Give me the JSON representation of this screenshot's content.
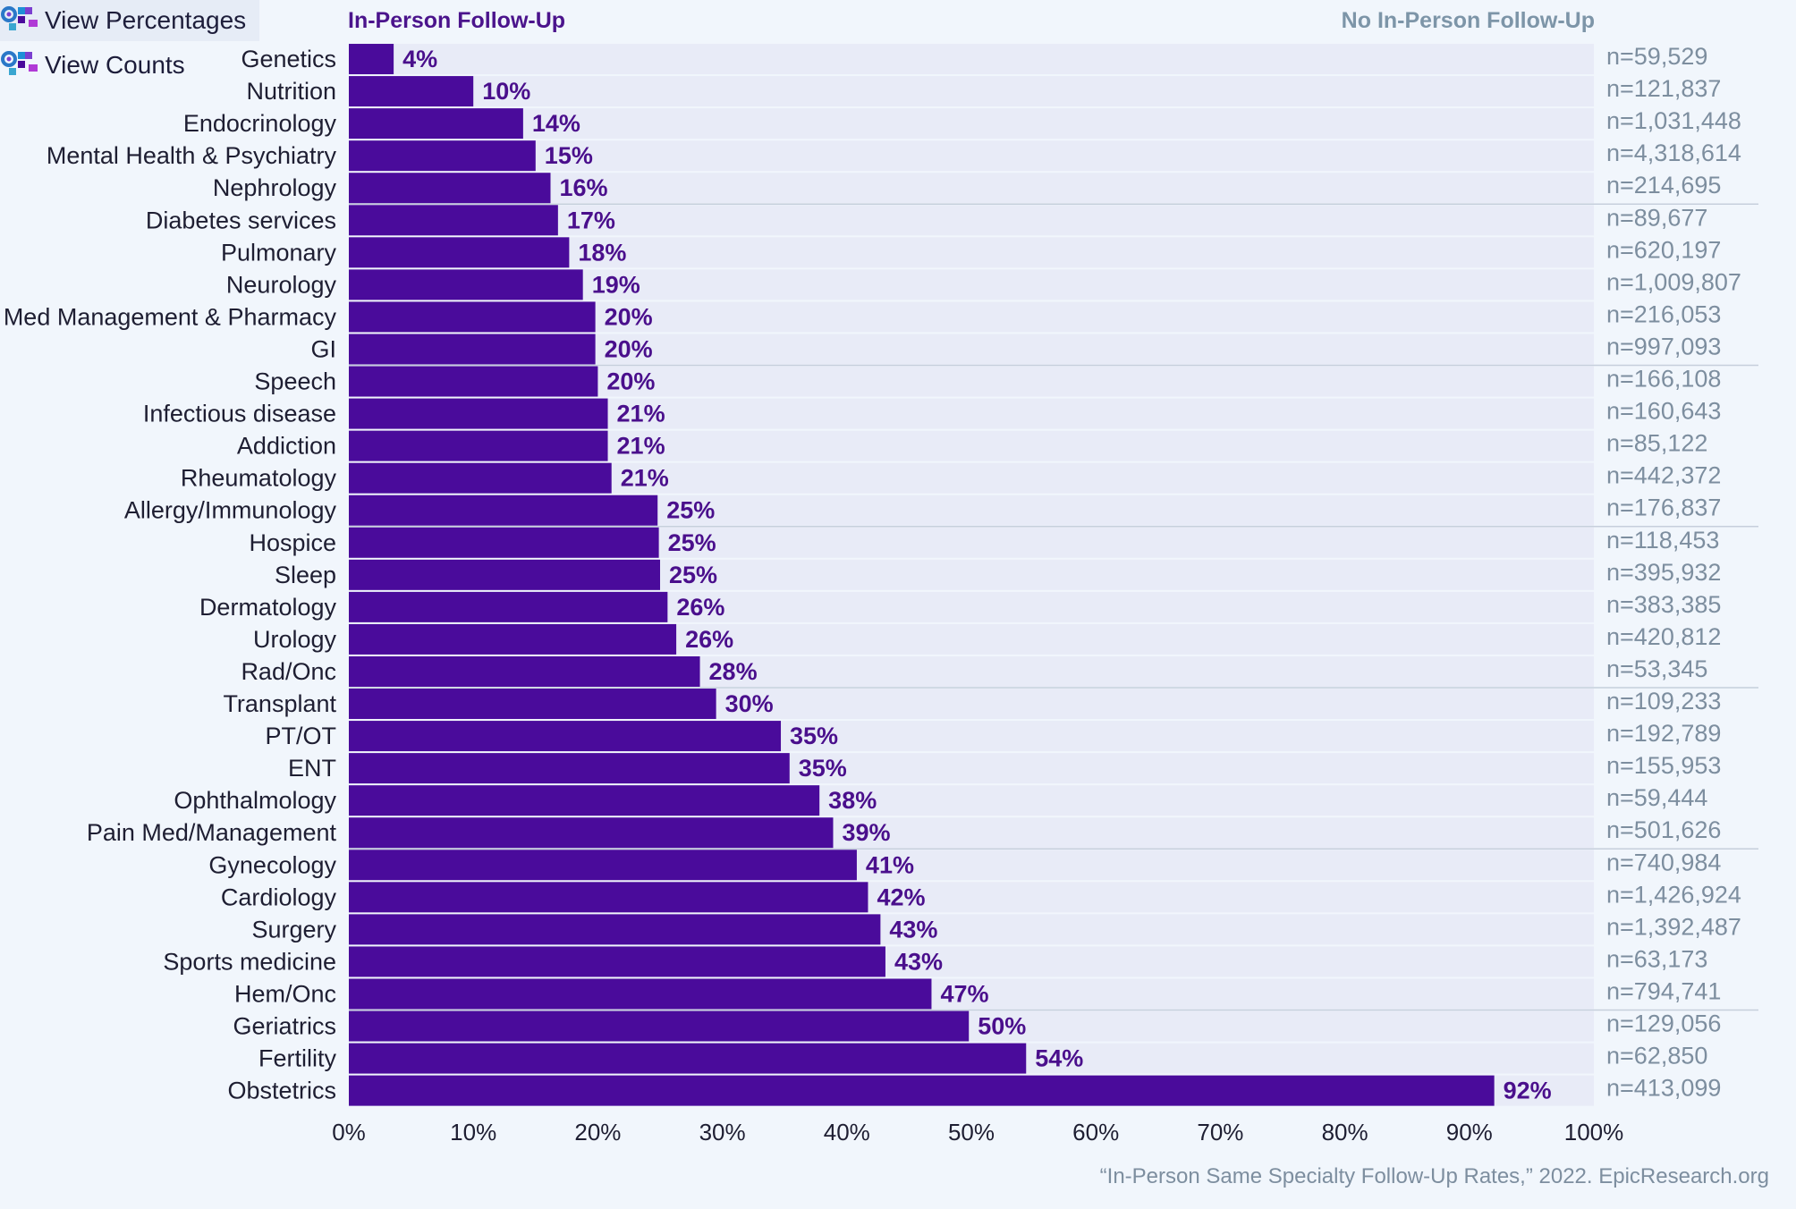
{
  "controls": {
    "view_percentages_label": "View Percentages",
    "view_counts_label": "View Counts",
    "active": "percentages",
    "icon": "bar-chart-toggle-icon"
  },
  "colors": {
    "background": "#f1f6fc",
    "bar": "#4a0b9b",
    "track": "#e8ebf7",
    "percent_label": "#4a0f8c",
    "n_label": "#7d8e9f",
    "legend_in": "#4b148c",
    "legend_out": "#7d95a8",
    "group_divider": "#c6cfdc"
  },
  "chart_data": {
    "type": "bar",
    "orientation": "horizontal",
    "stacked_to": 100,
    "legend": {
      "in_person": "In-Person Follow-Up",
      "no_in_person": "No In-Person Follow-Up",
      "placement": "top"
    },
    "categories": [
      "Genetics",
      "Nutrition",
      "Endocrinology",
      "Mental Health & Psychiatry",
      "Nephrology",
      "Diabetes services",
      "Pulmonary",
      "Neurology",
      "Med Management & Pharmacy",
      "GI",
      "Speech",
      "Infectious disease",
      "Addiction",
      "Rheumatology",
      "Allergy/Immunology",
      "Hospice",
      "Sleep",
      "Dermatology",
      "Urology",
      "Rad/Onc",
      "Transplant",
      "PT/OT",
      "ENT",
      "Ophthalmology",
      "Pain Med/Management",
      "Gynecology",
      "Cardiology",
      "Surgery",
      "Sports medicine",
      "Hem/Onc",
      "Geriatrics",
      "Fertility",
      "Obstetrics"
    ],
    "values": [
      3.6,
      10.0,
      14.0,
      15.0,
      16.2,
      16.8,
      17.7,
      18.8,
      19.8,
      19.8,
      20.0,
      20.8,
      20.8,
      21.1,
      24.8,
      24.9,
      25.0,
      25.6,
      26.3,
      28.2,
      29.5,
      34.7,
      35.4,
      37.8,
      38.9,
      40.8,
      41.7,
      42.7,
      43.1,
      46.8,
      49.8,
      54.4,
      92.0
    ],
    "value_labels": [
      "4%",
      "10%",
      "14%",
      "15%",
      "16%",
      "17%",
      "18%",
      "19%",
      "20%",
      "20%",
      "20%",
      "21%",
      "21%",
      "21%",
      "25%",
      "25%",
      "25%",
      "26%",
      "26%",
      "28%",
      "30%",
      "35%",
      "35%",
      "38%",
      "39%",
      "41%",
      "42%",
      "43%",
      "43%",
      "47%",
      "50%",
      "54%",
      "92%"
    ],
    "n_labels": [
      "n=59,529",
      "n=121,837",
      "n=1,031,448",
      "n=4,318,614",
      "n=214,695",
      "n=89,677",
      "n=620,197",
      "n=1,009,807",
      "n=216,053",
      "n=997,093",
      "n=166,108",
      "n=160,643",
      "n=85,122",
      "n=442,372",
      "n=176,837",
      "n=118,453",
      "n=395,932",
      "n=383,385",
      "n=420,812",
      "n=53,345",
      "n=109,233",
      "n=192,789",
      "n=155,953",
      "n=59,444",
      "n=501,626",
      "n=740,984",
      "n=1,426,924",
      "n=1,392,487",
      "n=63,173",
      "n=794,741",
      "n=129,056",
      "n=62,850",
      "n=413,099"
    ],
    "group_size": 5,
    "xlim": [
      0,
      100
    ],
    "xticks": [
      "0%",
      "10%",
      "20%",
      "30%",
      "40%",
      "50%",
      "60%",
      "70%",
      "80%",
      "90%",
      "100%"
    ],
    "grid": false,
    "source": "“In-Person Same Specialty Follow-Up Rates,” 2022. EpicResearch.org"
  }
}
